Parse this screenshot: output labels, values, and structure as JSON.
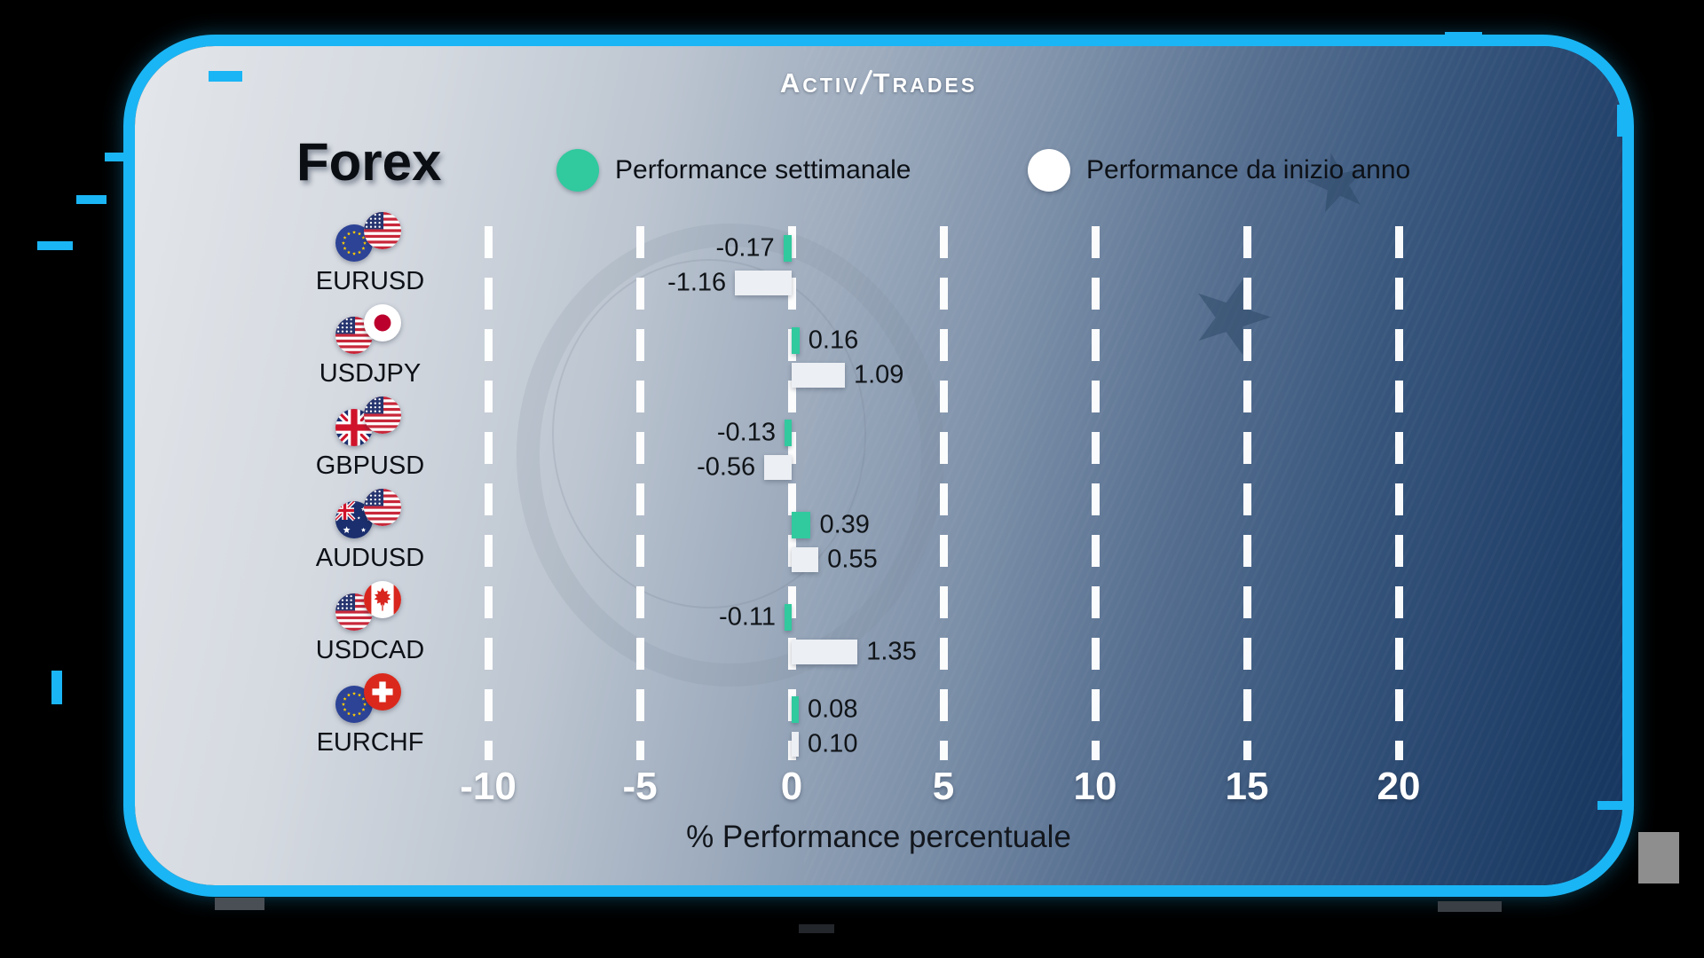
{
  "logo": {
    "part1": "Activ",
    "part2": "Trades"
  },
  "title": "Forex",
  "legend": {
    "weekly": {
      "label": "Performance settimanale",
      "color": "#31c99e"
    },
    "ytd": {
      "label": "Performance da inizio anno",
      "color": "#ffffff"
    }
  },
  "chart_data": {
    "type": "bar",
    "orientation": "horizontal",
    "title": "Forex",
    "xlabel": "% Performance percentuale",
    "x_ticks": [
      -10,
      -5,
      0,
      5,
      10,
      15,
      20
    ],
    "xlim": [
      -12.5,
      22.5
    ],
    "grid": "vertical-dashed-white",
    "legend_position": "top",
    "categories": [
      "EURUSD",
      "USDJPY",
      "GBPUSD",
      "AUDUSD",
      "USDCAD",
      "EURCHF"
    ],
    "flags": [
      [
        "eu",
        "us"
      ],
      [
        "us",
        "jp"
      ],
      [
        "gb",
        "us"
      ],
      [
        "au",
        "us"
      ],
      [
        "us",
        "ca"
      ],
      [
        "eu",
        "ch"
      ]
    ],
    "series": [
      {
        "name": "Performance settimanale",
        "color": "#31c99e",
        "values": [
          -0.17,
          0.16,
          -0.13,
          0.39,
          -0.11,
          0.08
        ]
      },
      {
        "name": "Performance da inizio anno",
        "color": "#eceff3",
        "values": [
          -1.16,
          1.09,
          -0.56,
          0.55,
          1.35,
          0.1
        ]
      }
    ]
  },
  "theme": {
    "border_color": "#1ab5f5",
    "bar_green": "#31c99e",
    "bar_white": "#eceff3",
    "outer_background": "#000000"
  }
}
